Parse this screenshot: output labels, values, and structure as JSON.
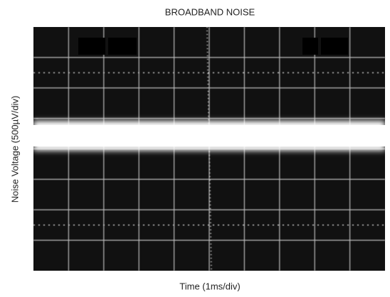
{
  "title": "BROADBAND NOISE",
  "x_label": "Time (1ms/div)",
  "y_label": "Noise Voltage (500µV/div)"
}
